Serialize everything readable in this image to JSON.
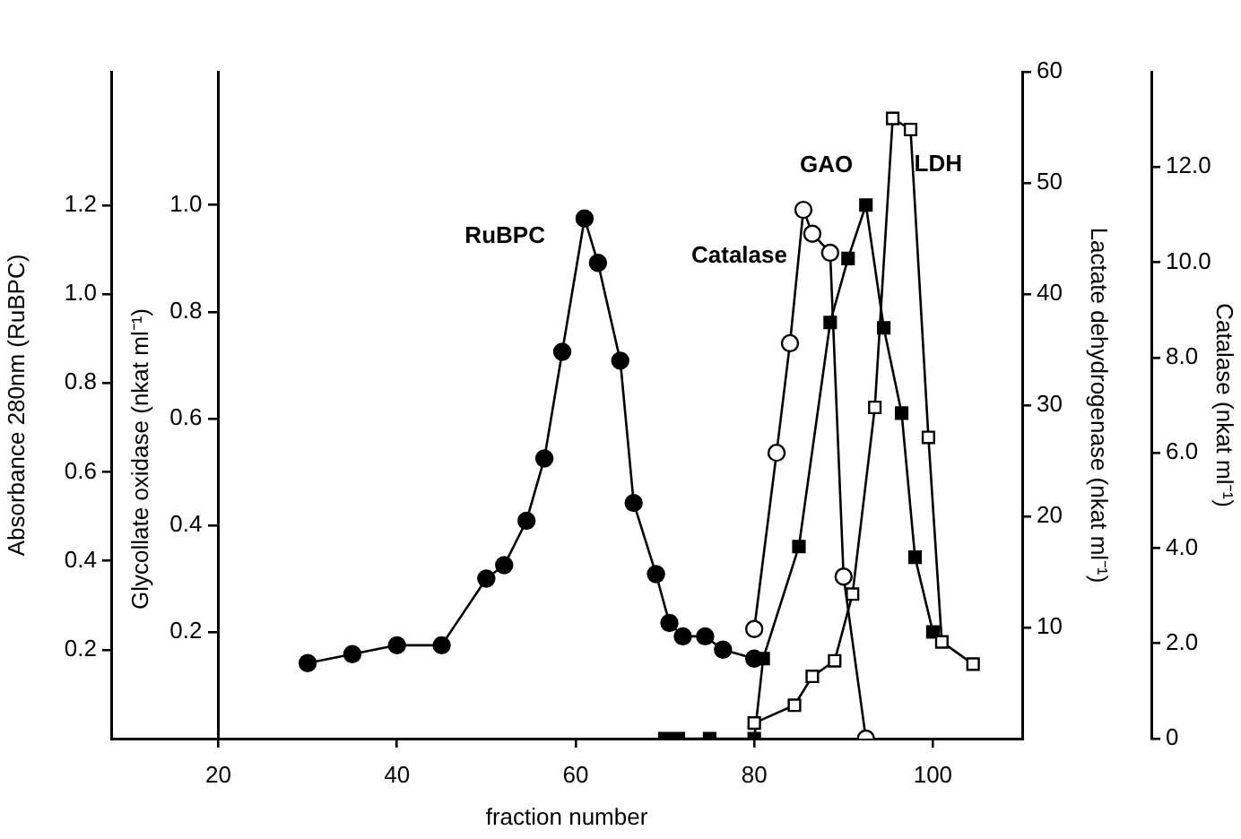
{
  "chart_data": [
    {
      "type": "line",
      "xlabel": "fraction number",
      "ylabel": "Absorbance 280nm (RuBPC)",
      "y2label": "Glycollate oxidase (nkat ml⁻¹)",
      "xlim": [
        8,
        110
      ],
      "xticks": [
        20,
        40,
        60,
        80,
        100
      ],
      "ylim": [
        0,
        1.5
      ],
      "yticks": [
        0.2,
        0.4,
        0.6,
        0.8,
        {
          "value": 1.0,
          "label": "1.0"
        },
        1.2
      ],
      "y2lim": [
        0,
        1.25
      ],
      "y2ticks": [
        0.2,
        0.4,
        0.6,
        0.8,
        {
          "value": 1.0,
          "label": "1.0"
        }
      ],
      "grid": false,
      "legend": false,
      "line_style": "solid",
      "series": [
        {
          "name": "RuBPC",
          "color": "#000000",
          "marker": "circle",
          "axis": "y",
          "x": [
            30,
            35,
            40,
            45,
            50,
            52,
            54.5,
            56.5,
            58.5,
            61,
            62.5,
            65,
            66.5,
            69,
            70.5,
            72,
            74.5,
            76.5,
            80
          ],
          "values": [
            0.17,
            0.19,
            0.21,
            0.21,
            0.36,
            0.39,
            0.49,
            0.63,
            0.87,
            1.17,
            1.07,
            0.85,
            0.53,
            0.37,
            0.26,
            0.23,
            0.23,
            0.2,
            0.18
          ]
        },
        {
          "name": "GAO",
          "color": "#000000",
          "marker": "square",
          "axis": "y2",
          "x": [
            70,
            71.5,
            75,
            80,
            81,
            85,
            88.5,
            90.5,
            92.5,
            94.5,
            96.5,
            98,
            100
          ],
          "values": [
            0,
            0,
            0,
            0,
            0.15,
            0.36,
            0.78,
            0.9,
            1.0,
            0.77,
            0.61,
            0.34,
            0.2
          ]
        }
      ]
    },
    {
      "type": "line",
      "ylabel": "Lactate dehydrogenase (nkat ml⁻¹)",
      "y2label": "Catalase (nkat ml⁻¹)",
      "tick_labels": "y",
      "xlim": [
        8,
        110
      ],
      "ylim": [
        0,
        60
      ],
      "yticks": [
        10,
        20,
        30,
        40,
        50,
        60
      ],
      "y2lim": [
        0,
        14
      ],
      "y2ticks": [
        0,
        {
          "value": 2,
          "label": "2.0"
        },
        {
          "value": 4,
          "label": "4.0"
        },
        {
          "value": 6,
          "label": "6.0"
        },
        {
          "value": 8,
          "label": "8.0"
        },
        {
          "value": 10,
          "label": "10.0"
        },
        {
          "value": 12,
          "label": "12.0"
        }
      ],
      "grid": false,
      "legend": false,
      "line_style": "solid",
      "series": [
        {
          "name": "Catalase",
          "color": "#ffffff",
          "marker": "circle",
          "axis": "y2",
          "x": [
            80,
            82.5,
            84,
            85.5,
            86.5,
            88.5,
            90,
            92.5
          ],
          "values": [
            2.3,
            6.0,
            8.3,
            11.1,
            10.6,
            10.2,
            3.4,
            0
          ]
        },
        {
          "name": "LDH",
          "color": "#ffffff",
          "marker": "square",
          "axis": "y",
          "x": [
            80,
            84.5,
            86.5,
            89,
            91,
            93.5,
            95.5,
            97.5,
            99.5,
            101,
            104.5
          ],
          "values": [
            1.4,
            3.0,
            5.6,
            7.0,
            13.0,
            29.8,
            55.8,
            54.8,
            27.1,
            8.7,
            6.7
          ]
        }
      ]
    }
  ]
}
